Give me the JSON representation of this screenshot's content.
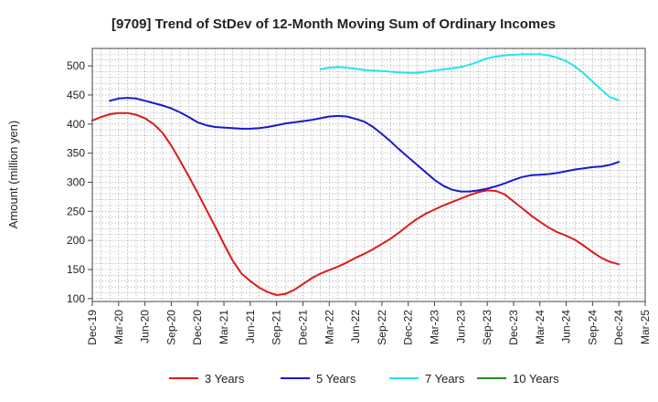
{
  "chart_data": {
    "type": "line",
    "title": "[9709]  Trend of StDev of 12-Month Moving Sum of Ordinary Incomes",
    "ylabel": "Amount (million yen)",
    "xlabel": "",
    "ylim": [
      95,
      530
    ],
    "yticks": [
      100,
      150,
      200,
      250,
      300,
      350,
      400,
      450,
      500
    ],
    "x_ticks": [
      "Dec-19",
      "Mar-20",
      "Jun-20",
      "Sep-20",
      "Dec-20",
      "Mar-21",
      "Jun-21",
      "Sep-21",
      "Dec-21",
      "Mar-22",
      "Jun-22",
      "Sep-22",
      "Dec-22",
      "Mar-23",
      "Jun-23",
      "Sep-23",
      "Dec-23",
      "Mar-24",
      "Jun-24",
      "Sep-24",
      "Dec-24",
      "Mar-25"
    ],
    "grid": true,
    "legend_position": "bottom",
    "series": [
      {
        "name": "3 Years",
        "color": "#dd1a1a",
        "points": [
          [
            "Dec-19",
            406
          ],
          [
            "Jan-20",
            412
          ],
          [
            "Feb-20",
            417
          ],
          [
            "Mar-20",
            419
          ],
          [
            "Apr-20",
            419
          ],
          [
            "May-20",
            416
          ],
          [
            "Jun-20",
            410
          ],
          [
            "Jul-20",
            400
          ],
          [
            "Aug-20",
            385
          ],
          [
            "Sep-20",
            363
          ],
          [
            "Oct-20",
            337
          ],
          [
            "Nov-20",
            310
          ],
          [
            "Dec-20",
            282
          ],
          [
            "Jan-21",
            253
          ],
          [
            "Feb-21",
            224
          ],
          [
            "Mar-21",
            194
          ],
          [
            "Apr-21",
            165
          ],
          [
            "May-21",
            143
          ],
          [
            "Jun-21",
            130
          ],
          [
            "Jul-21",
            119
          ],
          [
            "Aug-21",
            111
          ],
          [
            "Sep-21",
            106
          ],
          [
            "Oct-21",
            108
          ],
          [
            "Nov-21",
            115
          ],
          [
            "Dec-21",
            125
          ],
          [
            "Jan-22",
            135
          ],
          [
            "Feb-22",
            143
          ],
          [
            "Mar-22",
            149
          ],
          [
            "Apr-22",
            155
          ],
          [
            "May-22",
            162
          ],
          [
            "Jun-22",
            170
          ],
          [
            "Jul-22",
            177
          ],
          [
            "Aug-22",
            185
          ],
          [
            "Sep-22",
            194
          ],
          [
            "Oct-22",
            203
          ],
          [
            "Nov-22",
            214
          ],
          [
            "Dec-22",
            226
          ],
          [
            "Jan-23",
            237
          ],
          [
            "Feb-23",
            246
          ],
          [
            "Mar-23",
            253
          ],
          [
            "Apr-23",
            260
          ],
          [
            "May-23",
            266
          ],
          [
            "Jun-23",
            272
          ],
          [
            "Jul-23",
            278
          ],
          [
            "Aug-23",
            283
          ],
          [
            "Sep-23",
            286
          ],
          [
            "Oct-23",
            285
          ],
          [
            "Nov-23",
            279
          ],
          [
            "Dec-23",
            267
          ],
          [
            "Jan-24",
            255
          ],
          [
            "Feb-24",
            243
          ],
          [
            "Mar-24",
            232
          ],
          [
            "Apr-24",
            222
          ],
          [
            "May-24",
            214
          ],
          [
            "Jun-24",
            208
          ],
          [
            "Jul-24",
            201
          ],
          [
            "Aug-24",
            191
          ],
          [
            "Sep-24",
            180
          ],
          [
            "Oct-24",
            170
          ],
          [
            "Nov-24",
            163
          ],
          [
            "Dec-24",
            159
          ]
        ]
      },
      {
        "name": "5 Years",
        "color": "#1a1acc",
        "points": [
          [
            "Feb-20",
            440
          ],
          [
            "Mar-20",
            444
          ],
          [
            "Apr-20",
            445
          ],
          [
            "May-20",
            444
          ],
          [
            "Jun-20",
            440
          ],
          [
            "Jul-20",
            436
          ],
          [
            "Aug-20",
            432
          ],
          [
            "Sep-20",
            427
          ],
          [
            "Oct-20",
            420
          ],
          [
            "Nov-20",
            412
          ],
          [
            "Dec-20",
            403
          ],
          [
            "Jan-21",
            398
          ],
          [
            "Feb-21",
            395
          ],
          [
            "Mar-21",
            394
          ],
          [
            "Apr-21",
            393
          ],
          [
            "May-21",
            392
          ],
          [
            "Jun-21",
            392
          ],
          [
            "Jul-21",
            393
          ],
          [
            "Aug-21",
            395
          ],
          [
            "Sep-21",
            398
          ],
          [
            "Oct-21",
            401
          ],
          [
            "Nov-21",
            403
          ],
          [
            "Dec-21",
            405
          ],
          [
            "Jan-22",
            407
          ],
          [
            "Feb-22",
            410
          ],
          [
            "Mar-22",
            413
          ],
          [
            "Apr-22",
            414
          ],
          [
            "May-22",
            413
          ],
          [
            "Jun-22",
            409
          ],
          [
            "Jul-22",
            404
          ],
          [
            "Aug-22",
            395
          ],
          [
            "Sep-22",
            383
          ],
          [
            "Oct-22",
            370
          ],
          [
            "Nov-22",
            356
          ],
          [
            "Dec-22",
            343
          ],
          [
            "Jan-23",
            330
          ],
          [
            "Feb-23",
            317
          ],
          [
            "Mar-23",
            304
          ],
          [
            "Apr-23",
            294
          ],
          [
            "May-23",
            287
          ],
          [
            "Jun-23",
            284
          ],
          [
            "Jul-23",
            284
          ],
          [
            "Aug-23",
            286
          ],
          [
            "Sep-23",
            289
          ],
          [
            "Oct-23",
            293
          ],
          [
            "Nov-23",
            298
          ],
          [
            "Dec-23",
            304
          ],
          [
            "Jan-24",
            309
          ],
          [
            "Feb-24",
            312
          ],
          [
            "Mar-24",
            313
          ],
          [
            "Apr-24",
            314
          ],
          [
            "May-24",
            316
          ],
          [
            "Jun-24",
            319
          ],
          [
            "Jul-24",
            322
          ],
          [
            "Aug-24",
            324
          ],
          [
            "Sep-24",
            326
          ],
          [
            "Oct-24",
            327
          ],
          [
            "Nov-24",
            330
          ],
          [
            "Dec-24",
            335
          ]
        ]
      },
      {
        "name": "7 Years",
        "color": "#22e6e6",
        "points": [
          [
            "Feb-22",
            494
          ],
          [
            "Mar-22",
            497
          ],
          [
            "Apr-22",
            498
          ],
          [
            "May-22",
            497
          ],
          [
            "Jun-22",
            495
          ],
          [
            "Jul-22",
            493
          ],
          [
            "Aug-22",
            492
          ],
          [
            "Sep-22",
            491
          ],
          [
            "Oct-22",
            490
          ],
          [
            "Nov-22",
            489
          ],
          [
            "Dec-22",
            488
          ],
          [
            "Jan-23",
            488
          ],
          [
            "Feb-23",
            490
          ],
          [
            "Mar-23",
            492
          ],
          [
            "Apr-23",
            494
          ],
          [
            "May-23",
            496
          ],
          [
            "Jun-23",
            498
          ],
          [
            "Jul-23",
            502
          ],
          [
            "Aug-23",
            507
          ],
          [
            "Sep-23",
            513
          ],
          [
            "Oct-23",
            516
          ],
          [
            "Nov-23",
            518
          ],
          [
            "Dec-23",
            519
          ],
          [
            "Jan-24",
            520
          ],
          [
            "Feb-24",
            520
          ],
          [
            "Mar-24",
            520
          ],
          [
            "Apr-24",
            518
          ],
          [
            "May-24",
            514
          ],
          [
            "Jun-24",
            508
          ],
          [
            "Jul-24",
            499
          ],
          [
            "Aug-24",
            487
          ],
          [
            "Sep-24",
            473
          ],
          [
            "Oct-24",
            459
          ],
          [
            "Nov-24",
            446
          ],
          [
            "Dec-24",
            441
          ]
        ]
      },
      {
        "name": "10 Years",
        "color": "#228b22",
        "points": []
      }
    ]
  }
}
